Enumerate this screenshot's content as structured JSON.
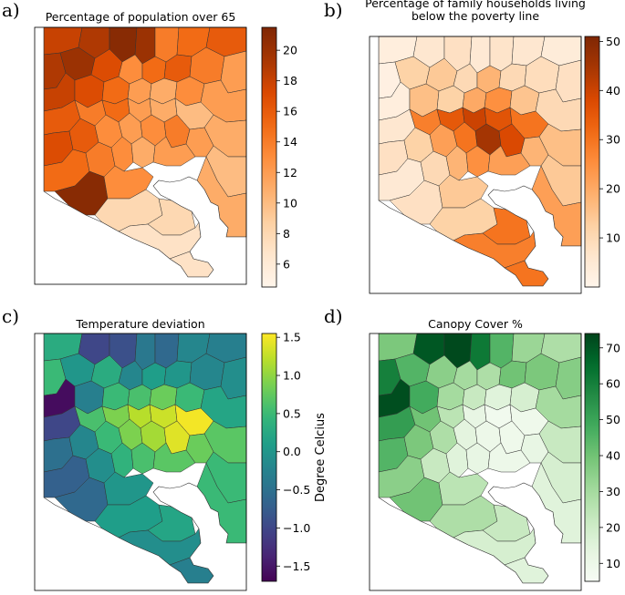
{
  "panels": [
    {
      "id": "a",
      "letter": "a)",
      "title_lines": [
        "Percentage of population over 65"
      ],
      "colormap": "Oranges",
      "colorbar": {
        "min": 4.5,
        "max": 21.5,
        "ticks": [
          6,
          8,
          10,
          12,
          14,
          16,
          18,
          20
        ],
        "label": ""
      }
    },
    {
      "id": "b",
      "letter": "b)",
      "title_lines": [
        "Percentage of family households living",
        "below the poverty line"
      ],
      "colormap": "Oranges",
      "colorbar": {
        "min": 0,
        "max": 51,
        "ticks": [
          10,
          20,
          30,
          40,
          50
        ],
        "label": ""
      }
    },
    {
      "id": "c",
      "letter": "c)",
      "title_lines": [
        "Temperature deviation"
      ],
      "colormap": "viridis",
      "colorbar": {
        "min": -1.7,
        "max": 1.55,
        "ticks": [
          -1.5,
          -1.0,
          -0.5,
          0.0,
          0.5,
          1.0,
          1.5
        ],
        "tick_labels": [
          "−1.5",
          "−1.0",
          "−0.5",
          "0.0",
          "0.5",
          "1.0",
          "1.5"
        ],
        "label": "Degree Celcius"
      }
    },
    {
      "id": "d",
      "letter": "d)",
      "title_lines": [
        "Canopy Cover %"
      ],
      "colormap": "Greens",
      "colorbar": {
        "min": 5,
        "max": 74,
        "ticks": [
          10,
          20,
          30,
          40,
          50,
          60,
          70
        ],
        "label": ""
      }
    }
  ]
}
